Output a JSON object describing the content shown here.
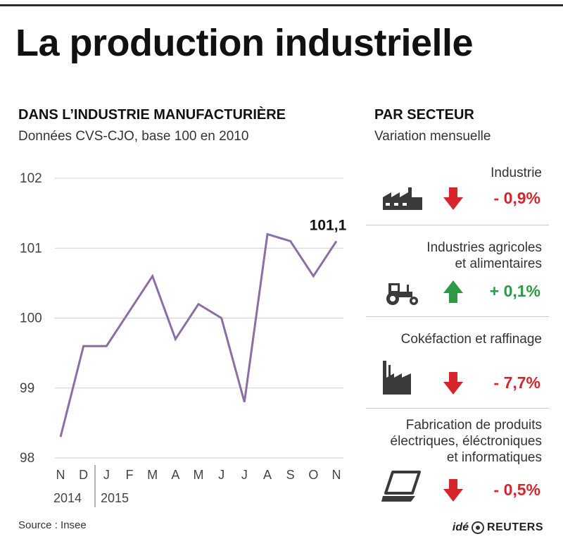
{
  "title": "La production industrielle",
  "left_panel": {
    "heading": "DANS L’INDUSTRIE MANUFACTURIÈRE",
    "subheading": "Données CVS-CJO, base 100 en 2010",
    "year_labels": [
      "2014",
      "2015"
    ]
  },
  "chart_data": {
    "type": "line",
    "x": [
      "N",
      "D",
      "J",
      "F",
      "M",
      "A",
      "M",
      "J",
      "J",
      "A",
      "S",
      "O",
      "N"
    ],
    "series": [
      {
        "values": [
          98.3,
          99.6,
          99.6,
          100.1,
          100.6,
          99.7,
          100.2,
          100.0,
          98.8,
          101.2,
          101.1,
          100.6,
          101.1
        ],
        "color": "#8b6fa3"
      }
    ],
    "yticks": [
      "98",
      "99",
      "100",
      "101",
      "102"
    ],
    "ylim": [
      98,
      102
    ],
    "grid": true,
    "annotation": {
      "text": "101,1",
      "index": 12
    }
  },
  "right_panel": {
    "heading": "PAR SECTEUR",
    "subheading": "Variation mensuelle",
    "colors": {
      "down": "#d7262b",
      "up": "#2e9a45"
    },
    "sectors": [
      {
        "label_lines": [
          "Industrie"
        ],
        "value": "- 0,9%",
        "direction": "down",
        "icon": "factory-icon"
      },
      {
        "label_lines": [
          "Industries agricoles",
          "et alimentaires"
        ],
        "value": "+ 0,1%",
        "direction": "up",
        "icon": "tractor-icon"
      },
      {
        "label_lines": [
          "Cokéfaction et raffinage"
        ],
        "value": "- 7,7%",
        "direction": "down",
        "icon": "refinery-icon"
      },
      {
        "label_lines": [
          "Fabrication de produits",
          "électriques, éléctroniques",
          "et informatiques"
        ],
        "value": "- 0,5%",
        "direction": "down",
        "icon": "laptop-icon"
      }
    ]
  },
  "footer": {
    "source": "Source : Insee",
    "credit_ide": "idé",
    "credit_reuters": "REUTERS"
  }
}
